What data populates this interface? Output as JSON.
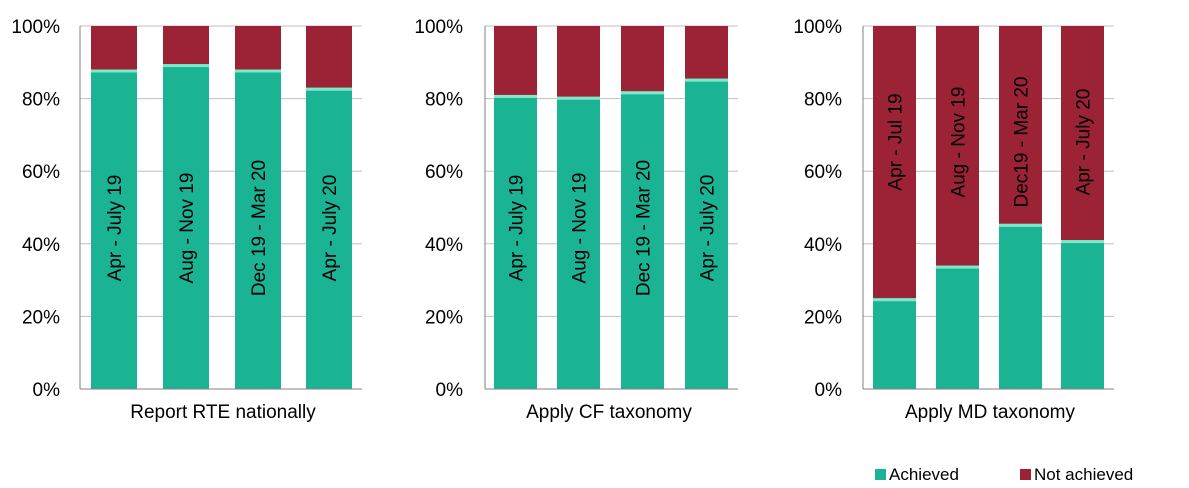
{
  "colors": {
    "achieved": "#1AB394",
    "not_achieved": "#9B2335"
  },
  "legend": [
    {
      "label": "Achieved",
      "color": "#1AB394"
    },
    {
      "label": "Not achieved",
      "color": "#9B2335"
    }
  ],
  "chart_data": [
    {
      "type": "bar",
      "stacked": true,
      "xlabel": "Report RTE nationally",
      "ylim": [
        0,
        100
      ],
      "yticks": [
        "0%",
        "20%",
        "40%",
        "60%",
        "80%",
        "100%"
      ],
      "categories": [
        "Apr - July 19",
        "Aug - Nov 19",
        "Dec 19 - Mar 20",
        "Apr - July 20"
      ],
      "series": [
        {
          "name": "Achieved",
          "values": [
            88,
            89.5,
            88,
            83
          ]
        },
        {
          "name": "Not achieved",
          "values": [
            12,
            10.5,
            12,
            17
          ]
        }
      ]
    },
    {
      "type": "bar",
      "stacked": true,
      "xlabel": "Apply CF taxonomy",
      "ylim": [
        0,
        100
      ],
      "yticks": [
        "0%",
        "20%",
        "40%",
        "60%",
        "80%",
        "100%"
      ],
      "categories": [
        "Apr - July 19",
        "Aug - Nov 19",
        "Dec 19 - Mar 20",
        "Apr - July 20"
      ],
      "series": [
        {
          "name": "Achieved",
          "values": [
            81,
            80.5,
            82,
            85.5
          ]
        },
        {
          "name": "Not achieved",
          "values": [
            19,
            19.5,
            18,
            14.5
          ]
        }
      ]
    },
    {
      "type": "bar",
      "stacked": true,
      "xlabel": "Apply MD taxonomy",
      "ylim": [
        0,
        100
      ],
      "yticks": [
        "0%",
        "20%",
        "40%",
        "60%",
        "80%",
        "100%"
      ],
      "categories": [
        "Apr - Jul 19",
        "Aug - Nov 19",
        "Dec19 - Mar 20",
        "Apr - July 20"
      ],
      "series": [
        {
          "name": "Achieved",
          "values": [
            25,
            34,
            45.5,
            41
          ]
        },
        {
          "name": "Not achieved",
          "values": [
            75,
            66,
            54.5,
            59
          ]
        }
      ]
    }
  ]
}
